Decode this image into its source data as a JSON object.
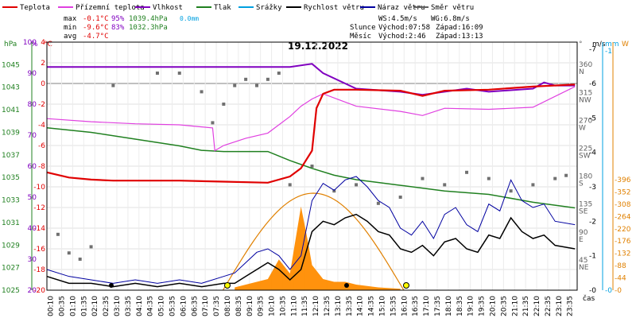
{
  "chart_data": {
    "type": "line",
    "title": "19.12.2022",
    "xlabel": "čas",
    "legend": {
      "placement": "top",
      "items": [
        {
          "name": "Teplota",
          "color": "#e00000"
        },
        {
          "name": "Přízemní teplota",
          "color": "#e040e0"
        },
        {
          "name": "Vlhkost",
          "color": "#8000c0"
        },
        {
          "name": "Tlak",
          "color": "#208020"
        },
        {
          "name": "Srážky",
          "color": "#00a0e0"
        },
        {
          "name": "Rychlost větru",
          "color": "#000000"
        },
        {
          "name": "Náraz větru",
          "color": "#0000a0"
        },
        {
          "name": "Směr větru",
          "color": "#606060"
        }
      ]
    },
    "stats": {
      "max_label": "max",
      "max_temp": "-0.1°C",
      "max_hum": "95%",
      "max_pres": "1039.4hPa",
      "precip": "0.0mm",
      "min_label": "min",
      "min_temp": "-9.6°C",
      "min_hum": "83%",
      "min_pres": "1032.3hPa",
      "avg_label": "avg",
      "avg_temp": "-4.7°C",
      "ws": "WS:4.5m/s",
      "wg": "WG:6.8m/s",
      "sun_label": "Slunce",
      "sunrise": "Východ:07:58",
      "sunset": "Západ:16:09",
      "moon_label": "Měsíc",
      "moonrise": "Východ:2:46",
      "moonset": "Západ:13:13"
    },
    "axes": {
      "hpa": {
        "unit": "hPa",
        "range": [
          1025,
          1047
        ],
        "ticks": [
          "1025",
          "1027",
          "1029",
          "1031",
          "1033",
          "1035",
          "1037",
          "1039",
          "1041",
          "1043",
          "1045"
        ]
      },
      "percent": {
        "unit": "%",
        "range": [
          20,
          100
        ],
        "ticks": [
          "20",
          "30",
          "40",
          "50",
          "60",
          "70",
          "80",
          "90",
          "100"
        ]
      },
      "celsius": {
        "unit": "°C",
        "range": [
          -20,
          4
        ],
        "ticks": [
          "-20",
          "-18",
          "-16",
          "-14",
          "-12",
          "-10",
          "-8",
          "-6",
          "-4",
          "-2",
          "0",
          "2",
          "4"
        ]
      },
      "direction": {
        "unit": "°",
        "ticks": [
          {
            "deg": "360",
            "dir": "N"
          },
          {
            "deg": "315",
            "dir": "NW"
          },
          {
            "deg": "270",
            "dir": "W"
          },
          {
            "deg": "225",
            "dir": "SW"
          },
          {
            "deg": "180",
            "dir": "S"
          },
          {
            "deg": "135",
            "dir": "SE"
          },
          {
            "deg": "90",
            "dir": "E"
          },
          {
            "deg": "45",
            "dir": "NE"
          }
        ]
      },
      "wind": {
        "unit": "m/s",
        "range": [
          0,
          7
        ],
        "ticks": [
          "0",
          "1",
          "2",
          "3",
          "4",
          "5",
          "6",
          "7"
        ]
      },
      "precip": {
        "unit": "mm",
        "range": [
          0,
          1
        ],
        "ticks": [
          "0",
          "1"
        ]
      },
      "solar": {
        "unit": "W",
        "range": [
          0,
          396
        ],
        "ticks": [
          "0",
          "44",
          "88",
          "132",
          "176",
          "220",
          "264",
          "308",
          "352",
          "396"
        ]
      }
    },
    "x_ticks": [
      "00:10",
      "00:35",
      "01:10",
      "01:35",
      "02:10",
      "02:35",
      "03:10",
      "03:35",
      "04:10",
      "04:35",
      "05:10",
      "05:35",
      "06:10",
      "06:35",
      "07:10",
      "07:35",
      "08:10",
      "08:35",
      "09:10",
      "09:35",
      "10:10",
      "10:35",
      "11:10",
      "11:35",
      "12:10",
      "12:35",
      "13:10",
      "13:35",
      "14:10",
      "14:35",
      "15:10",
      "15:35",
      "16:10",
      "16:35",
      "17:10",
      "17:35",
      "18:10",
      "18:35",
      "19:10",
      "19:35",
      "20:10",
      "20:35",
      "21:10",
      "21:35",
      "22:10",
      "22:35",
      "23:10",
      "23:35"
    ],
    "series": [
      {
        "name": "Teplota",
        "unit": "°C",
        "x_hours": [
          0,
          1,
          2,
          3,
          6,
          8,
          10,
          11,
          11.5,
          12,
          12.2,
          12.5,
          13,
          14,
          16,
          17,
          18,
          20,
          22,
          23.9
        ],
        "y": [
          -8.6,
          -9.1,
          -9.3,
          -9.4,
          -9.4,
          -9.5,
          -9.6,
          -9.0,
          -8.2,
          -6.5,
          -2.4,
          -1.0,
          -0.6,
          -0.6,
          -0.7,
          -1.2,
          -0.7,
          -0.6,
          -0.3,
          -0.1
        ]
      },
      {
        "name": "Přízemní teplota",
        "unit": "°C",
        "x_hours": [
          0,
          2,
          4,
          6,
          7,
          7.5,
          7.6,
          8,
          9,
          10,
          11,
          11.5,
          12,
          12.5,
          14,
          16,
          17,
          18,
          20,
          22,
          23.9
        ],
        "y": [
          -3.4,
          -3.7,
          -3.9,
          -4.0,
          -4.2,
          -4.3,
          -6.5,
          -6.0,
          -5.3,
          -4.8,
          -3.2,
          -2.2,
          -1.5,
          -1.0,
          -2.2,
          -2.7,
          -3.1,
          -2.4,
          -2.5,
          -2.3,
          -0.3
        ]
      },
      {
        "name": "Vlhkost",
        "unit": "%",
        "x_hours": [
          0,
          4,
          8,
          10,
          10.5,
          11,
          12,
          12.5,
          14,
          16,
          17,
          18,
          19,
          20,
          22,
          22.5,
          23,
          23.9
        ],
        "y": [
          92,
          92,
          92,
          92,
          92,
          92,
          93,
          90,
          85,
          84,
          83,
          84,
          85,
          84,
          85,
          87,
          86,
          86
        ]
      },
      {
        "name": "Tlak",
        "unit": "hPa",
        "x_hours": [
          0,
          2,
          4,
          6,
          7,
          8,
          10,
          11,
          12,
          13,
          14,
          16,
          18,
          20,
          22,
          23.9
        ],
        "y": [
          1039.4,
          1039.0,
          1038.4,
          1037.8,
          1037.4,
          1037.3,
          1037.3,
          1036.5,
          1035.8,
          1035.2,
          1034.8,
          1034.3,
          1033.8,
          1033.5,
          1032.8,
          1032.3
        ]
      },
      {
        "name": "Srážky",
        "unit": "mm",
        "x_hours": [
          0,
          23.9
        ],
        "y": [
          0,
          0
        ]
      },
      {
        "name": "Rychlost větru",
        "unit": "m/s",
        "x_hours": [
          0,
          1,
          2,
          3,
          4,
          5,
          6,
          7,
          8,
          8.5,
          9,
          9.5,
          10,
          10.5,
          11,
          11.5,
          12,
          12.5,
          13,
          13.5,
          14,
          14.5,
          15,
          15.5,
          16,
          16.5,
          17,
          17.5,
          18,
          18.5,
          19,
          19.5,
          20,
          20.5,
          21,
          21.5,
          22,
          22.5,
          23,
          23.9
        ],
        "y": [
          0.4,
          0.2,
          0.2,
          0.1,
          0.2,
          0.1,
          0.2,
          0.1,
          0.2,
          0.2,
          0.4,
          0.6,
          0.8,
          0.6,
          0.3,
          0.6,
          1.7,
          2.0,
          1.9,
          2.1,
          2.2,
          2.0,
          1.7,
          1.6,
          1.2,
          1.1,
          1.3,
          1.0,
          1.4,
          1.5,
          1.2,
          1.1,
          1.6,
          1.5,
          2.1,
          1.7,
          1.5,
          1.6,
          1.3,
          1.2
        ]
      },
      {
        "name": "Náraz větru",
        "unit": "m/s",
        "x_hours": [
          0,
          1,
          2,
          3,
          4,
          5,
          6,
          7,
          8,
          8.5,
          9,
          9.5,
          10,
          10.5,
          11,
          11.5,
          12,
          12.5,
          13,
          13.5,
          14,
          14.5,
          15,
          15.5,
          16,
          16.5,
          17,
          17.5,
          18,
          18.5,
          19,
          19.5,
          20,
          20.5,
          21,
          21.5,
          22,
          22.5,
          23,
          23.9
        ],
        "y": [
          0.6,
          0.4,
          0.3,
          0.2,
          0.3,
          0.2,
          0.3,
          0.2,
          0.4,
          0.5,
          0.8,
          1.1,
          1.2,
          1.0,
          0.6,
          1.0,
          2.6,
          3.1,
          2.9,
          3.2,
          3.3,
          3.0,
          2.6,
          2.4,
          1.8,
          1.6,
          2.0,
          1.5,
          2.2,
          2.4,
          1.9,
          1.7,
          2.5,
          2.3,
          3.2,
          2.6,
          2.4,
          2.5,
          2.0,
          1.9
        ]
      },
      {
        "name": "Solar",
        "unit": "W",
        "x_hours": [
          8.5,
          9,
          9.5,
          10,
          10.5,
          11,
          11.5,
          11.8,
          12,
          12.5,
          13,
          13.5,
          14,
          15,
          16
        ],
        "y": [
          10,
          20,
          30,
          40,
          110,
          60,
          300,
          180,
          90,
          40,
          30,
          30,
          20,
          10,
          5
        ]
      }
    ],
    "wind_direction_points": {
      "unit": "°",
      "x_hours": [
        0.5,
        1,
        1.5,
        2,
        3,
        5,
        6,
        7,
        7.5,
        8,
        8.5,
        9,
        9.5,
        10,
        10.5,
        11,
        12,
        13,
        14,
        15,
        16,
        17,
        18,
        19,
        20,
        21,
        22,
        23,
        23.5
      ],
      "y": [
        90,
        60,
        50,
        70,
        330,
        350,
        350,
        320,
        270,
        300,
        330,
        340,
        330,
        340,
        350,
        170,
        200,
        160,
        170,
        140,
        150,
        180,
        170,
        190,
        180,
        160,
        170,
        180,
        185
      ]
    }
  }
}
